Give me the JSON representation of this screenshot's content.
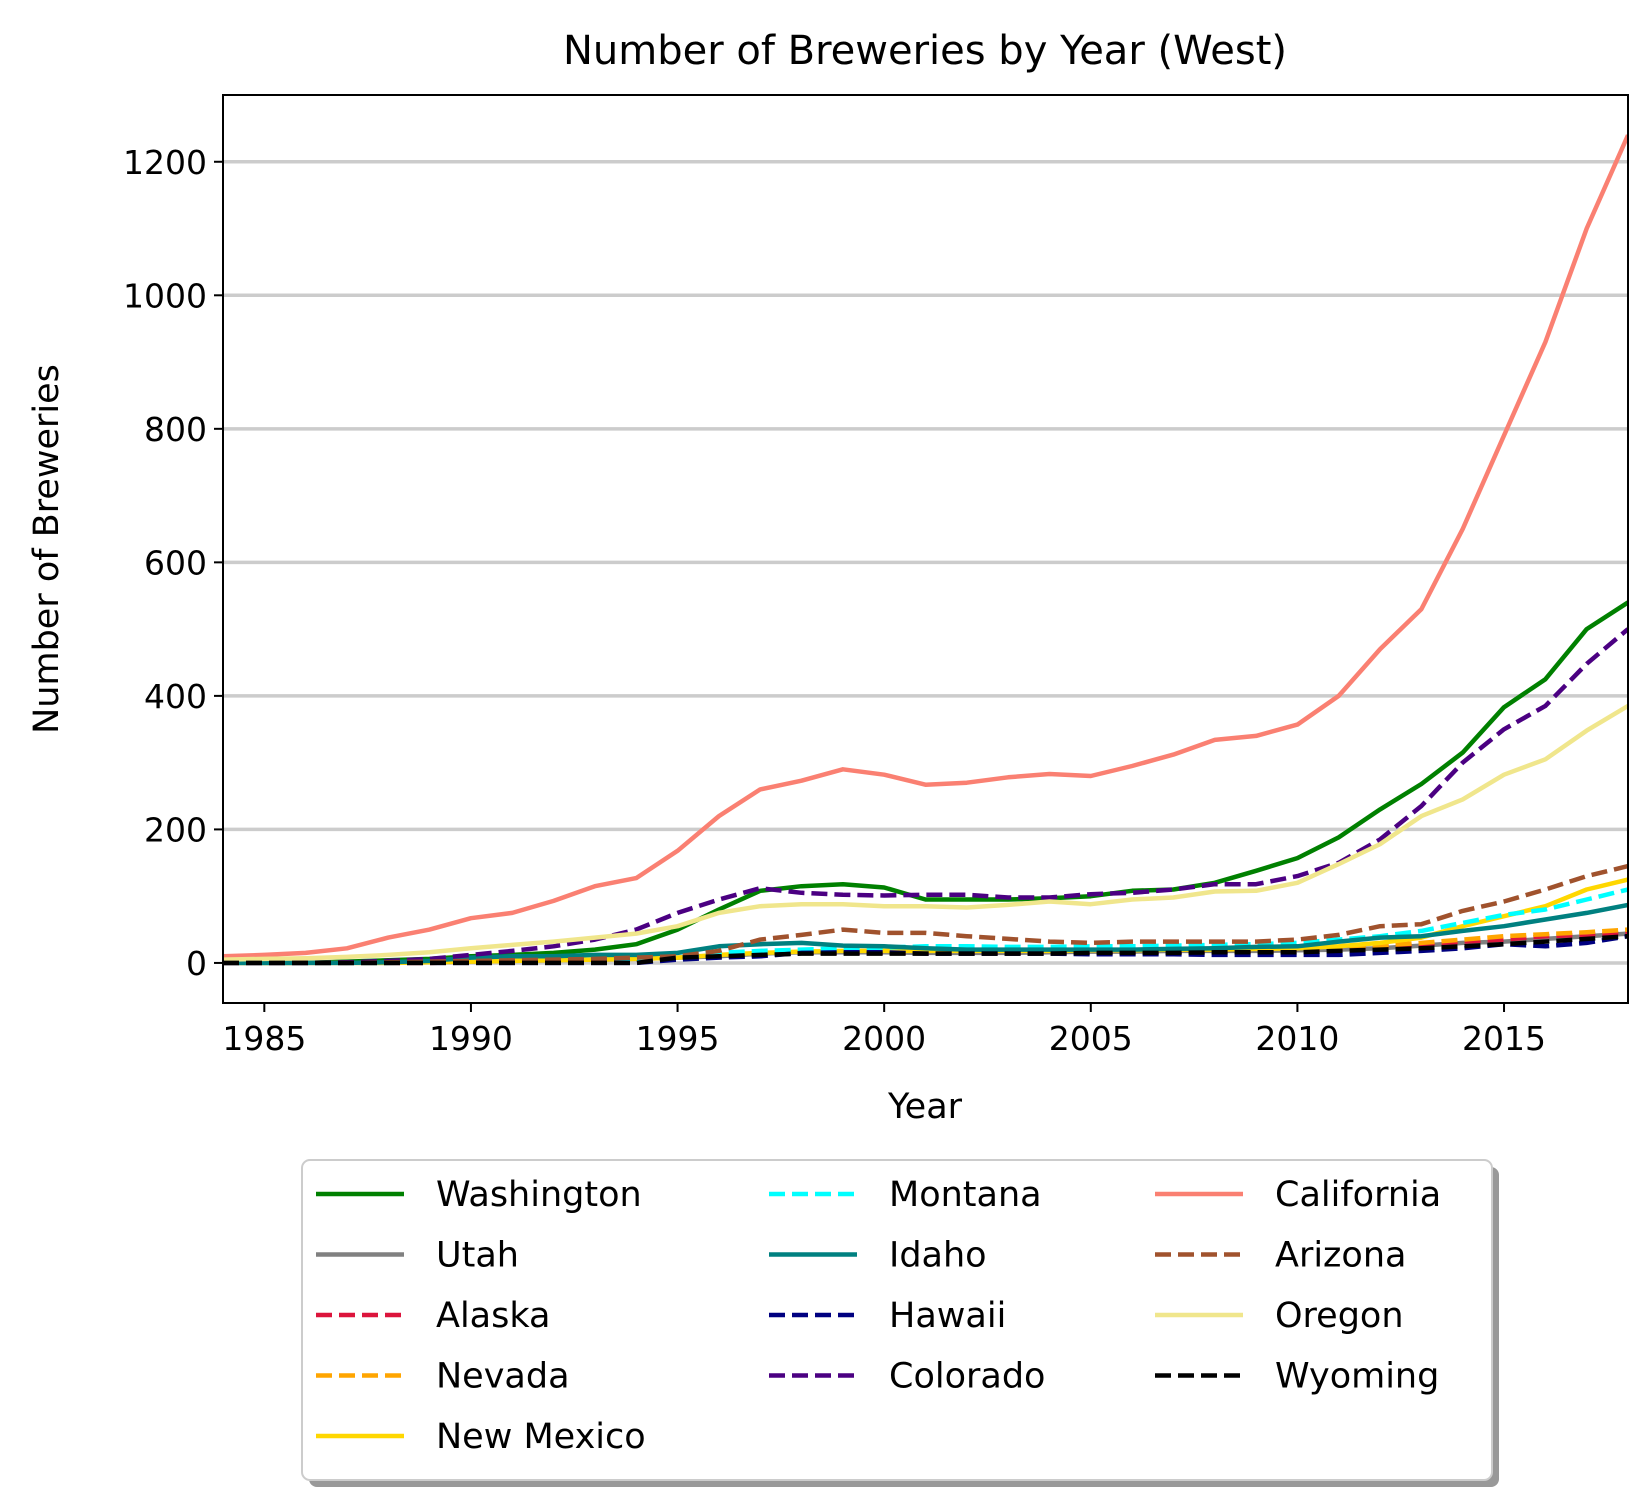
{
  "chart_data": {
    "type": "line",
    "title": "Number of Breweries by Year (West)",
    "xlabel": "Year",
    "ylabel": "Number of Breweries",
    "xlim": [
      1984,
      2018
    ],
    "ylim": [
      -60,
      1300
    ],
    "xticks": [
      1985,
      1990,
      1995,
      2000,
      2005,
      2010,
      2015
    ],
    "yticks": [
      0,
      200,
      400,
      600,
      800,
      1000,
      1200
    ],
    "grid": "horizontal",
    "legend": {
      "placement": "below",
      "columns": 3
    },
    "x": [
      1984,
      1985,
      1986,
      1987,
      1988,
      1989,
      1990,
      1991,
      1992,
      1993,
      1994,
      1995,
      1996,
      1997,
      1998,
      1999,
      2000,
      2001,
      2002,
      2003,
      2004,
      2005,
      2006,
      2007,
      2008,
      2009,
      2010,
      2011,
      2012,
      2013,
      2014,
      2015,
      2016,
      2017,
      2018
    ],
    "series": [
      {
        "name": "Washington",
        "color": "#008000",
        "dash": "solid",
        "values": [
          0,
          0,
          0,
          2,
          4,
          6,
          10,
          12,
          15,
          20,
          28,
          50,
          80,
          108,
          115,
          118,
          113,
          95,
          95,
          95,
          97,
          100,
          108,
          110,
          120,
          138,
          157,
          188,
          230,
          268,
          315,
          383,
          425,
          500,
          540
        ]
      },
      {
        "name": "Utah",
        "color": "#808080",
        "dash": "solid",
        "values": [
          0,
          0,
          0,
          0,
          0,
          1,
          2,
          3,
          4,
          5,
          6,
          8,
          10,
          14,
          16,
          16,
          16,
          15,
          15,
          15,
          16,
          17,
          17,
          18,
          18,
          18,
          19,
          20,
          22,
          26,
          30,
          32,
          36,
          40,
          44
        ]
      },
      {
        "name": "Alaska",
        "color": "#DC143C",
        "dash": "dashed",
        "values": [
          0,
          0,
          0,
          0,
          0,
          0,
          1,
          2,
          3,
          4,
          5,
          8,
          12,
          15,
          15,
          15,
          15,
          15,
          15,
          15,
          16,
          16,
          17,
          17,
          18,
          19,
          20,
          22,
          25,
          28,
          32,
          35,
          40,
          42,
          45
        ]
      },
      {
        "name": "Nevada",
        "color": "#FFA500",
        "dash": "dashed",
        "values": [
          0,
          0,
          0,
          0,
          0,
          0,
          1,
          1,
          2,
          3,
          4,
          6,
          10,
          15,
          17,
          18,
          18,
          18,
          18,
          18,
          18,
          19,
          19,
          20,
          20,
          20,
          21,
          23,
          26,
          30,
          35,
          40,
          43,
          46,
          50
        ]
      },
      {
        "name": "New Mexico",
        "color": "#FFD700",
        "dash": "solid",
        "values": [
          0,
          0,
          0,
          0,
          0,
          1,
          2,
          3,
          4,
          5,
          6,
          8,
          12,
          15,
          17,
          18,
          18,
          18,
          18,
          18,
          18,
          19,
          19,
          20,
          20,
          21,
          22,
          25,
          30,
          38,
          55,
          70,
          85,
          110,
          125
        ]
      },
      {
        "name": "Montana",
        "color": "#00FFFF",
        "dash": "dashed",
        "values": [
          0,
          0,
          0,
          0,
          0,
          1,
          2,
          3,
          4,
          5,
          6,
          10,
          15,
          18,
          20,
          22,
          23,
          25,
          25,
          24,
          24,
          25,
          25,
          26,
          27,
          28,
          30,
          35,
          40,
          48,
          60,
          72,
          80,
          95,
          110
        ]
      },
      {
        "name": "Idaho",
        "color": "#008080",
        "dash": "solid",
        "values": [
          0,
          0,
          0,
          0,
          1,
          3,
          8,
          10,
          10,
          12,
          12,
          15,
          25,
          28,
          30,
          26,
          25,
          22,
          20,
          20,
          20,
          20,
          20,
          21,
          22,
          24,
          25,
          32,
          38,
          40,
          48,
          55,
          65,
          75,
          87
        ]
      },
      {
        "name": "Hawaii",
        "color": "#000080",
        "dash": "dashed",
        "values": [
          0,
          0,
          0,
          0,
          0,
          0,
          0,
          0,
          0,
          0,
          0,
          5,
          8,
          10,
          15,
          16,
          16,
          14,
          14,
          14,
          14,
          13,
          13,
          13,
          12,
          12,
          12,
          12,
          15,
          18,
          22,
          28,
          25,
          30,
          40
        ]
      },
      {
        "name": "Colorado",
        "color": "#4B0082",
        "dash": "dashed",
        "values": [
          0,
          0,
          0,
          1,
          3,
          6,
          12,
          18,
          25,
          35,
          50,
          75,
          95,
          112,
          105,
          102,
          101,
          102,
          102,
          98,
          98,
          103,
          105,
          110,
          118,
          118,
          130,
          150,
          185,
          235,
          300,
          350,
          385,
          448,
          500
        ]
      },
      {
        "name": "California",
        "color": "#FA8072",
        "dash": "solid",
        "values": [
          10,
          12,
          15,
          22,
          38,
          50,
          67,
          75,
          93,
          115,
          127,
          168,
          220,
          260,
          273,
          290,
          282,
          267,
          270,
          278,
          283,
          280,
          295,
          312,
          334,
          340,
          357,
          400,
          470,
          530,
          650,
          790,
          930,
          1100,
          1240
        ]
      },
      {
        "name": "Arizona",
        "color": "#A0522D",
        "dash": "dashed",
        "values": [
          0,
          0,
          0,
          0,
          1,
          2,
          3,
          4,
          5,
          6,
          8,
          10,
          18,
          35,
          42,
          50,
          45,
          45,
          40,
          36,
          32,
          30,
          32,
          32,
          32,
          32,
          35,
          42,
          55,
          58,
          78,
          92,
          110,
          130,
          145
        ]
      },
      {
        "name": "Oregon",
        "color": "#F0E68C",
        "dash": "solid",
        "values": [
          5,
          6,
          7,
          9,
          12,
          16,
          22,
          27,
          32,
          38,
          44,
          55,
          75,
          85,
          88,
          88,
          85,
          85,
          83,
          87,
          92,
          88,
          95,
          98,
          107,
          108,
          120,
          148,
          178,
          220,
          245,
          282,
          305,
          348,
          385
        ]
      },
      {
        "name": "Wyoming",
        "color": "#000000",
        "dash": "dashed",
        "values": [
          0,
          0,
          0,
          0,
          0,
          0,
          0,
          0,
          0,
          0,
          0,
          8,
          10,
          12,
          14,
          14,
          14,
          14,
          14,
          14,
          14,
          15,
          15,
          15,
          16,
          16,
          16,
          18,
          20,
          22,
          25,
          28,
          32,
          36,
          40
        ]
      }
    ]
  }
}
